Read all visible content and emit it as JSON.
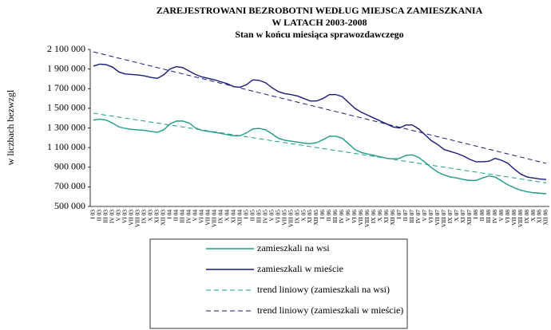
{
  "chart_data": {
    "type": "line",
    "title": [
      "ZAREJESTROWANI BEZROBOTNI WEDŁUG MIEJSCA ZAMIESZKANIA",
      "W LATACH 2003-2008",
      "Stan w końcu miesiąca sprawozdawczego"
    ],
    "ylabel": "w liczbach bezwzgl",
    "categories": [
      "I 03",
      "II 03",
      "III 03",
      "IV 03",
      "V 03",
      "VI 03",
      "VII 03",
      "VIII 03",
      "IX 03",
      "X 03",
      "XI 03",
      "XII 03",
      "I 04",
      "II 04",
      "III 04",
      "IV 04",
      "V 04",
      "VI 04",
      "VII 04",
      "VIII 04",
      "IX 04",
      "X 04",
      "XI 04",
      "XII 04",
      "I 05",
      "II 05",
      "III 05",
      "IV 05",
      "V 05",
      "VI 05",
      "VII 05",
      "VIII 05",
      "IX 05",
      "X 05",
      "XI 05",
      "XII 05",
      "I 06",
      "II 06",
      "III 06",
      "IV 06",
      "V 06",
      "VI 06",
      "VII 06",
      "VIII 06",
      "IX 06",
      "X 06",
      "XI 06",
      "XII 06",
      "I 07",
      "II 07",
      "III 07",
      "IV 07",
      "V 07",
      "VI 07",
      "VII 07",
      "VIII 07",
      "IX 07",
      "X 07",
      "XI 07",
      "XII 07",
      "I 08",
      "II 08",
      "III 08",
      "IV 08",
      "V 08",
      "VI 08",
      "VII 08",
      "VIII 08",
      "IX 08",
      "X 08",
      "XI 08",
      "XII 08"
    ],
    "series": [
      {
        "name": "zamieszkali na wsi",
        "color": "#1f9a8a",
        "dashed": false,
        "values": [
          1380000,
          1390000,
          1380000,
          1350000,
          1310000,
          1295000,
          1285000,
          1280000,
          1275000,
          1265000,
          1255000,
          1280000,
          1340000,
          1370000,
          1370000,
          1350000,
          1300000,
          1275000,
          1265000,
          1255000,
          1245000,
          1230000,
          1220000,
          1220000,
          1250000,
          1290000,
          1295000,
          1280000,
          1240000,
          1195000,
          1175000,
          1165000,
          1155000,
          1145000,
          1140000,
          1150000,
          1180000,
          1215000,
          1215000,
          1195000,
          1140000,
          1080000,
          1050000,
          1035000,
          1020000,
          1005000,
          990000,
          985000,
          990000,
          1020000,
          1025000,
          1000000,
          950000,
          895000,
          850000,
          820000,
          800000,
          790000,
          775000,
          765000,
          765000,
          790000,
          810000,
          800000,
          760000,
          720000,
          690000,
          665000,
          650000,
          640000,
          635000,
          630000
        ]
      },
      {
        "name": "zamieszkali w mieście",
        "color": "#1a1a7a",
        "dashed": false,
        "values": [
          1930000,
          1950000,
          1945000,
          1920000,
          1870000,
          1850000,
          1845000,
          1840000,
          1830000,
          1815000,
          1805000,
          1840000,
          1900000,
          1925000,
          1915000,
          1880000,
          1845000,
          1820000,
          1805000,
          1790000,
          1770000,
          1750000,
          1720000,
          1715000,
          1740000,
          1790000,
          1785000,
          1760000,
          1710000,
          1670000,
          1650000,
          1640000,
          1625000,
          1600000,
          1575000,
          1575000,
          1600000,
          1640000,
          1640000,
          1620000,
          1560000,
          1500000,
          1460000,
          1430000,
          1400000,
          1370000,
          1340000,
          1310000,
          1300000,
          1330000,
          1330000,
          1290000,
          1230000,
          1170000,
          1130000,
          1080000,
          1060000,
          1040000,
          1015000,
          980000,
          955000,
          955000,
          960000,
          990000,
          970000,
          940000,
          880000,
          830000,
          800000,
          790000,
          780000,
          775000
        ]
      },
      {
        "name": "trend liniowy (zamieszkali na wsi)",
        "color": "#1f9a8a",
        "dashed": true,
        "values": [
          1450000,
          1440000,
          1430000,
          1420000,
          1410000,
          1400000,
          1390000,
          1380000,
          1370000,
          1360000,
          1350000,
          1340000,
          1330000,
          1320000,
          1310000,
          1300000,
          1290000,
          1280000,
          1270000,
          1260000,
          1250000,
          1240000,
          1230000,
          1220000,
          1210000,
          1200000,
          1190000,
          1180000,
          1170000,
          1160000,
          1150000,
          1140000,
          1130000,
          1120000,
          1110000,
          1100000,
          1090000,
          1080000,
          1070000,
          1060000,
          1050000,
          1040000,
          1030000,
          1020000,
          1010000,
          1000000,
          990000,
          980000,
          970000,
          960000,
          950000,
          940000,
          930000,
          920000,
          910000,
          900000,
          890000,
          880000,
          870000,
          860000,
          850000,
          840000,
          830000,
          820000,
          810000,
          800000,
          790000,
          780000,
          770000,
          760000,
          750000,
          740000
        ]
      },
      {
        "name": "trend liniowy (zamieszkali w mieście)",
        "color": "#1a1a7a",
        "dashed": true,
        "values": [
          2075000,
          2059000,
          2043000,
          2027000,
          2011000,
          1995000,
          1979000,
          1963000,
          1947000,
          1931000,
          1915000,
          1899000,
          1883000,
          1867000,
          1851000,
          1835000,
          1819000,
          1803000,
          1787000,
          1771000,
          1755000,
          1739000,
          1723000,
          1707000,
          1691000,
          1675000,
          1659000,
          1643000,
          1627000,
          1611000,
          1595000,
          1579000,
          1563000,
          1547000,
          1531000,
          1515000,
          1499000,
          1483000,
          1467000,
          1451000,
          1435000,
          1419000,
          1403000,
          1387000,
          1371000,
          1355000,
          1339000,
          1323000,
          1307000,
          1291000,
          1275000,
          1259000,
          1243000,
          1227000,
          1211000,
          1195000,
          1179000,
          1163000,
          1147000,
          1131000,
          1115000,
          1099000,
          1083000,
          1067000,
          1051000,
          1035000,
          1019000,
          1003000,
          987000,
          971000,
          955000,
          939000
        ]
      }
    ],
    "ylim": [
      500000,
      2100000
    ],
    "yticks": [
      {
        "value": 500000,
        "label": "500 000"
      },
      {
        "value": 700000,
        "label": "700 000"
      },
      {
        "value": 900000,
        "label": "900 000"
      },
      {
        "value": 1100000,
        "label": "1 100 000"
      },
      {
        "value": 1300000,
        "label": "1 300 000"
      },
      {
        "value": 1500000,
        "label": "1 500 000"
      },
      {
        "value": 1700000,
        "label": "1 700 000"
      },
      {
        "value": 1900000,
        "label": "1 900 000"
      },
      {
        "value": 2100000,
        "label": "2 100 000"
      }
    ],
    "grid": false
  }
}
